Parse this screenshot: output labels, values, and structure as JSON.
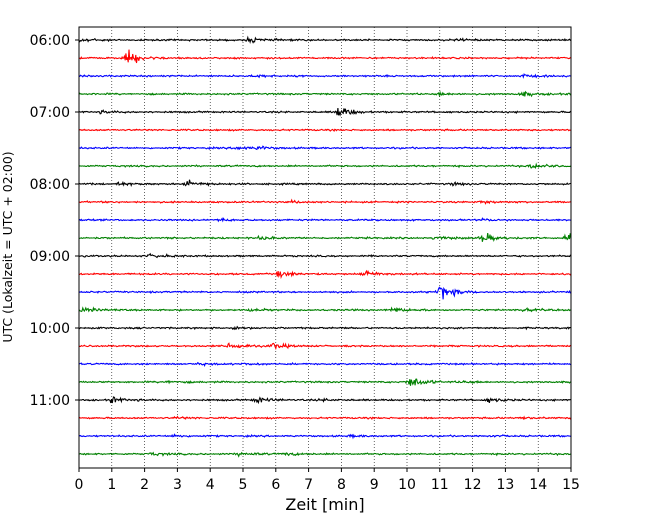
{
  "chart_data": {
    "type": "line",
    "subtype": "helicorder",
    "xlabel": "Zeit  [min]",
    "ylabel": "UTC (Lokalzeit = UTC + 02:00)",
    "xlim": [
      0,
      15
    ],
    "x_ticks": [
      0,
      1,
      2,
      3,
      4,
      5,
      6,
      7,
      8,
      9,
      10,
      11,
      12,
      13,
      14,
      15
    ],
    "y_tick_labels": [
      "06:00",
      "07:00",
      "08:00",
      "09:00",
      "10:00",
      "11:00"
    ],
    "lines_per_tick": 4,
    "grid": "vertical dotted",
    "color_cycle": [
      "#000000",
      "#ff0000",
      "#0000ff",
      "#008000"
    ],
    "traces": [
      {
        "start": "06:00",
        "events": [
          [
            0.1,
            1.0
          ],
          [
            5.2,
            1.0
          ],
          [
            11.5,
            0.5
          ]
        ]
      },
      {
        "start": "06:15",
        "events": [
          [
            1.5,
            3.0
          ]
        ]
      },
      {
        "start": "06:30",
        "events": [
          [
            5.4,
            0.5
          ],
          [
            13.5,
            0.6
          ]
        ]
      },
      {
        "start": "06:45",
        "events": [
          [
            11.0,
            0.6
          ],
          [
            13.5,
            1.0
          ]
        ]
      },
      {
        "start": "07:00",
        "events": [
          [
            0.7,
            0.5
          ],
          [
            7.9,
            2.5
          ]
        ]
      },
      {
        "start": "07:15",
        "events": []
      },
      {
        "start": "07:30",
        "events": [
          [
            4.8,
            0.8
          ],
          [
            5.5,
            0.6
          ]
        ]
      },
      {
        "start": "07:45",
        "events": [
          [
            13.8,
            1.2
          ]
        ]
      },
      {
        "start": "08:00",
        "events": [
          [
            1.1,
            0.8
          ],
          [
            3.3,
            1.5
          ],
          [
            11.4,
            0.5
          ]
        ]
      },
      {
        "start": "08:15",
        "events": [
          [
            6.5,
            0.4
          ],
          [
            12.3,
            0.6
          ]
        ]
      },
      {
        "start": "08:30",
        "events": [
          [
            4.3,
            0.5
          ],
          [
            12.3,
            0.4
          ]
        ]
      },
      {
        "start": "08:45",
        "events": [
          [
            5.5,
            0.6
          ],
          [
            10.9,
            0.8
          ],
          [
            12.3,
            2.0
          ],
          [
            14.9,
            1.5
          ]
        ]
      },
      {
        "start": "09:00",
        "events": [
          [
            2.2,
            0.8
          ]
        ]
      },
      {
        "start": "09:15",
        "events": [
          [
            6.1,
            1.5
          ],
          [
            8.7,
            1.5
          ]
        ]
      },
      {
        "start": "09:30",
        "events": [
          [
            11.0,
            3.5
          ]
        ]
      },
      {
        "start": "09:45",
        "events": [
          [
            0.1,
            1.0
          ],
          [
            5.2,
            0.5
          ],
          [
            9.6,
            1.0
          ],
          [
            13.6,
            0.5
          ]
        ]
      },
      {
        "start": "10:00",
        "events": [
          [
            4.7,
            0.5
          ]
        ]
      },
      {
        "start": "10:15",
        "events": [
          [
            4.6,
            1.5
          ],
          [
            5.9,
            1.2
          ]
        ]
      },
      {
        "start": "10:30",
        "events": [
          [
            3.6,
            0.4
          ],
          [
            5.0,
            0.3
          ]
        ]
      },
      {
        "start": "10:45",
        "events": [
          [
            2.7,
            0.5
          ],
          [
            10.1,
            2.5
          ],
          [
            11.7,
            0.5
          ]
        ]
      },
      {
        "start": "11:00",
        "events": [
          [
            1.0,
            1.2
          ],
          [
            5.4,
            1.2
          ],
          [
            7.4,
            0.4
          ],
          [
            12.5,
            1.0
          ]
        ]
      },
      {
        "start": "11:15",
        "events": [
          [
            3.0,
            0.4
          ],
          [
            13.5,
            0.4
          ]
        ]
      },
      {
        "start": "11:30",
        "events": [
          [
            2.9,
            0.5
          ],
          [
            8.3,
            0.4
          ],
          [
            12.4,
            0.3
          ]
        ]
      },
      {
        "start": "11:45",
        "events": [
          [
            2.2,
            0.6
          ],
          [
            4.9,
            0.8
          ],
          [
            6.3,
            0.5
          ]
        ]
      }
    ]
  }
}
